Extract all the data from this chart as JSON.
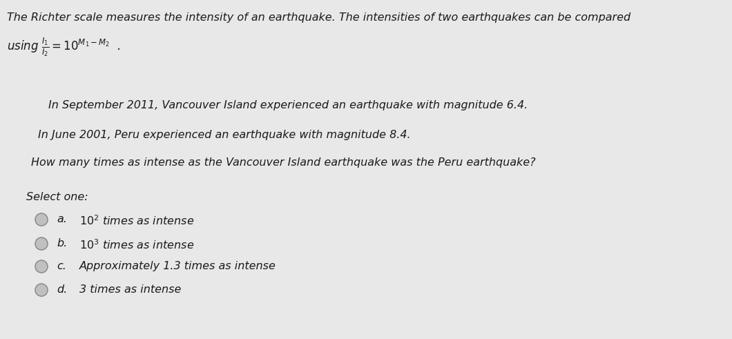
{
  "bg_color": "#e8e8e8",
  "title_line1": "The Richter scale measures the intensity of an earthquake. The intensities of two earthquakes can be compared",
  "line1": "In September 2011, Vancouver Island experienced an earthquake with magnitude 6.4.",
  "line2": "In June 2001, Peru experienced an earthquake with magnitude 8.4.",
  "line3": "How many times as intense as the Vancouver Island earthquake was the Peru earthquake?",
  "select_label": "Select one:",
  "options_labels": [
    "a.",
    "b.",
    "c.",
    "d."
  ],
  "options_texts": [
    "$10^2$ times as intense",
    "$10^3$ times as intense",
    "Approximately 1.3 times as intense",
    "3 times as intense"
  ],
  "font_size_title": 11.5,
  "font_size_body": 11.5,
  "font_size_formula": 12,
  "font_size_select": 11.5,
  "font_size_option": 11.5,
  "text_color": "#1a1a1a"
}
